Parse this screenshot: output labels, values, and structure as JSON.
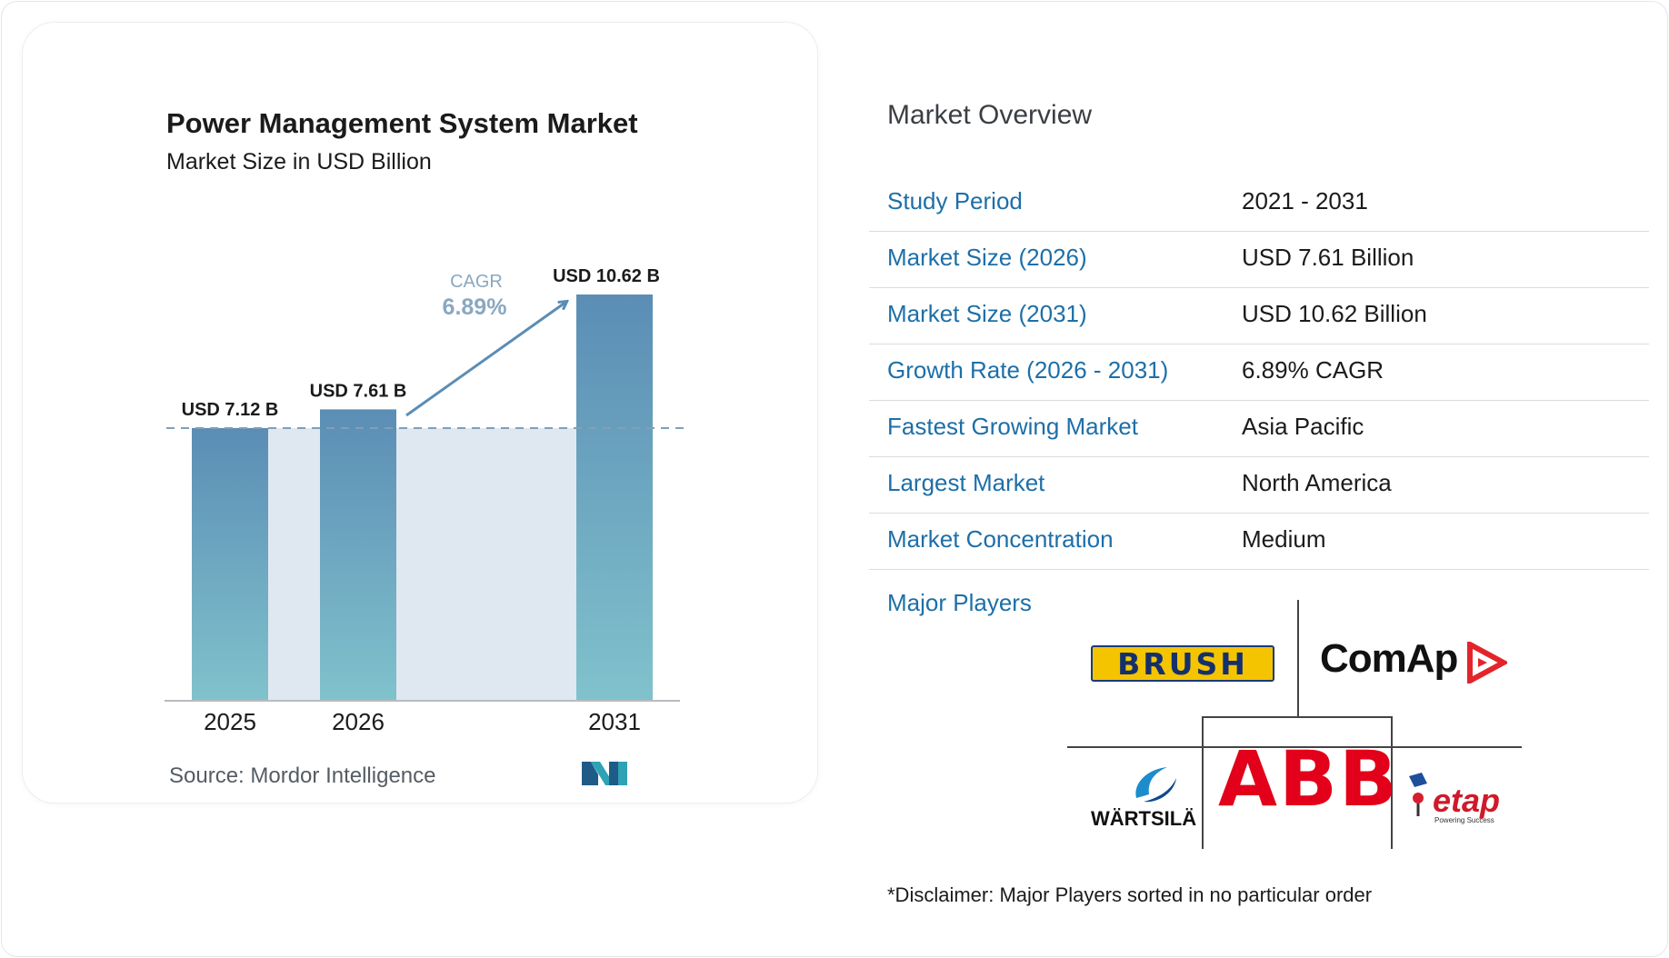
{
  "chart": {
    "title": "Power Management System Market",
    "subtitle": "Market Size in USD Billion",
    "source": "Source: Mordor Intelligence",
    "cagr_label": "CAGR",
    "cagr_value": "6.89%"
  },
  "chart_data": {
    "type": "bar",
    "title": "Power Management System Market",
    "subtitle": "Market Size in USD Billion",
    "categories": [
      "2025",
      "2026",
      "2031"
    ],
    "values": [
      7.12,
      7.61,
      10.62
    ],
    "data_labels": [
      "USD 7.12 B",
      "USD 7.61 B",
      "USD 10.62 B"
    ],
    "annotation": "CAGR 6.89%",
    "ylim": [
      0,
      10.62
    ],
    "grid": false,
    "colors": {
      "bar_top": "#5b8db5",
      "bar_bottom": "#80c2cc",
      "band": "#dfe8f0",
      "arrow": "#5b8db5"
    }
  },
  "overview": {
    "title": "Market Overview",
    "rows": [
      {
        "label": "Study Period",
        "value": "2021 - 2031"
      },
      {
        "label": "Market Size (2026)",
        "value": "USD 7.61 Billion"
      },
      {
        "label": "Market Size (2031)",
        "value": "USD 10.62 Billion"
      },
      {
        "label": "Growth Rate (2026 - 2031)",
        "value": "6.89% CAGR"
      },
      {
        "label": "Fastest Growing Market",
        "value": "Asia Pacific"
      },
      {
        "label": "Largest Market",
        "value": "North America"
      },
      {
        "label": "Market Concentration",
        "value": "Medium"
      }
    ],
    "players_label": "Major Players",
    "players": [
      "BRUSH",
      "ComAp",
      "ABB",
      "WÄRTSILÄ",
      "etap"
    ],
    "etap_tagline": "Powering Success",
    "disclaimer": "*Disclaimer: Major Players sorted in no particular order"
  },
  "colors": {
    "accent": "#1d6fa8",
    "label_text": "#1b1b1b"
  }
}
